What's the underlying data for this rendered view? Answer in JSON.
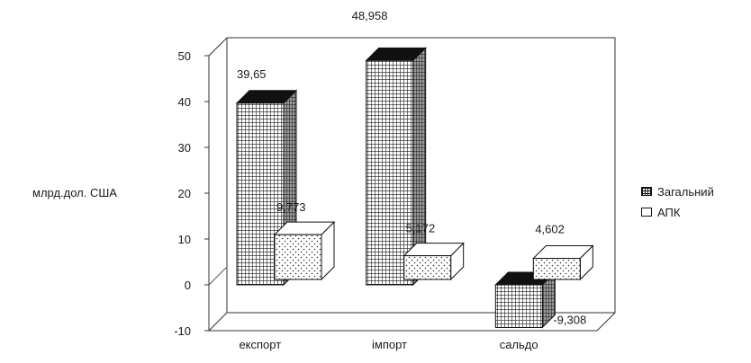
{
  "chart_data": {
    "type": "bar",
    "title": "",
    "xlabel": "",
    "ylabel": "млрд.дол. США",
    "categories": [
      "експорт",
      "імпорт",
      "сальдо"
    ],
    "ylim": [
      -10,
      50
    ],
    "yticks": [
      -10,
      0,
      10,
      20,
      30,
      40,
      50
    ],
    "series": [
      {
        "name": "Загальний",
        "values": [
          39.65,
          48.958,
          -9.308
        ],
        "labels": [
          "39,65",
          "48,958",
          "-9,308"
        ]
      },
      {
        "name": "АПК",
        "values": [
          9.773,
          5.172,
          4.602
        ],
        "labels": [
          "9,773",
          "5,172",
          "4,602"
        ]
      }
    ],
    "legend_position": "right",
    "style": "3d-column",
    "grid": false
  }
}
